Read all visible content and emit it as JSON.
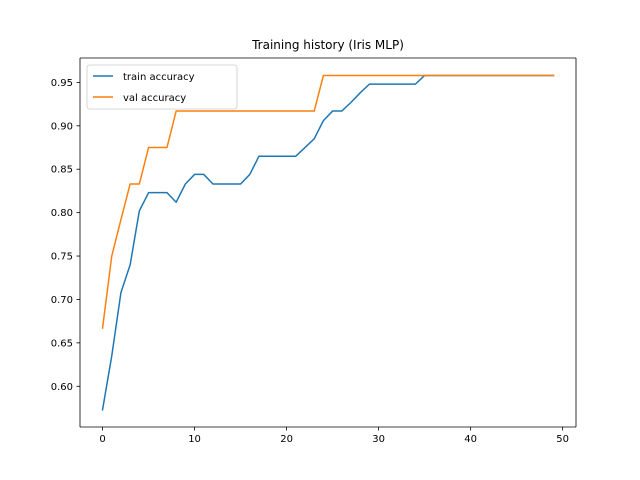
{
  "chart_data": {
    "type": "line",
    "title": "Training history (Iris MLP)",
    "xlabel": "",
    "ylabel": "",
    "xlim": [
      -2.45,
      51.45
    ],
    "ylim": [
      0.5531,
      0.9781
    ],
    "x_ticks": [
      0,
      10,
      20,
      30,
      40,
      50
    ],
    "y_ticks": [
      0.6,
      0.65,
      0.7,
      0.75,
      0.8,
      0.85,
      0.9,
      0.95
    ],
    "x_tick_labels": [
      "0",
      "10",
      "20",
      "30",
      "40",
      "50"
    ],
    "y_tick_labels": [
      "0.60",
      "0.65",
      "0.70",
      "0.75",
      "0.80",
      "0.85",
      "0.90",
      "0.95"
    ],
    "grid": false,
    "legend_position": "upper-left",
    "x": [
      0,
      1,
      2,
      3,
      4,
      5,
      6,
      7,
      8,
      9,
      10,
      11,
      12,
      13,
      14,
      15,
      16,
      17,
      18,
      19,
      20,
      21,
      22,
      23,
      24,
      25,
      26,
      27,
      28,
      29,
      30,
      31,
      32,
      33,
      34,
      35,
      36,
      37,
      38,
      39,
      40,
      41,
      42,
      43,
      44,
      45,
      46,
      47,
      48,
      49
    ],
    "series": [
      {
        "name": "train accuracy",
        "color": "#1f77b4",
        "values": [
          0.573,
          0.635,
          0.708,
          0.74,
          0.802,
          0.823,
          0.823,
          0.823,
          0.812,
          0.833,
          0.844,
          0.844,
          0.833,
          0.833,
          0.833,
          0.833,
          0.844,
          0.865,
          0.865,
          0.865,
          0.865,
          0.865,
          0.875,
          0.885,
          0.906,
          0.917,
          0.917,
          0.927,
          0.938,
          0.948,
          0.948,
          0.948,
          0.948,
          0.948,
          0.948,
          0.958,
          0.958,
          0.958,
          0.958,
          0.958,
          0.958,
          0.958,
          0.958,
          0.958,
          0.958,
          0.958,
          0.958,
          0.958,
          0.958,
          0.958
        ]
      },
      {
        "name": "val accuracy",
        "color": "#ff7f0e",
        "values": [
          0.667,
          0.75,
          0.792,
          0.833,
          0.833,
          0.875,
          0.875,
          0.875,
          0.917,
          0.917,
          0.917,
          0.917,
          0.917,
          0.917,
          0.917,
          0.917,
          0.917,
          0.917,
          0.917,
          0.917,
          0.917,
          0.917,
          0.917,
          0.917,
          0.958,
          0.958,
          0.958,
          0.958,
          0.958,
          0.958,
          0.958,
          0.958,
          0.958,
          0.958,
          0.958,
          0.958,
          0.958,
          0.958,
          0.958,
          0.958,
          0.958,
          0.958,
          0.958,
          0.958,
          0.958,
          0.958,
          0.958,
          0.958,
          0.958,
          0.958
        ]
      }
    ]
  }
}
